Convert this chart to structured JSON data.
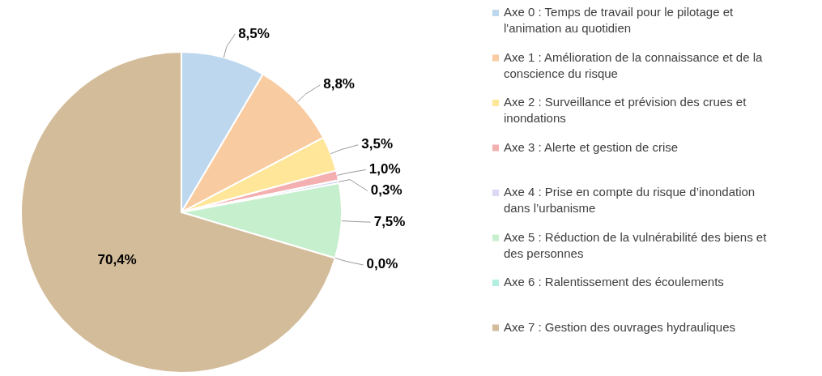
{
  "chart_data": {
    "type": "pie",
    "categories": [
      "Axe 0 : Temps de travail pour le pilotage et l'animation au quotidien",
      "Axe 1 : Amélioration de la connaissance et de la conscience du risque",
      "Axe 2 : Surveillance et prévision des crues et inondations",
      "Axe 3 : Alerte et gestion de crise",
      "Axe 4 : Prise en compte du risque d’inondation dans l’urbanisme",
      "Axe 5 : Réduction de la vulnérabilité des biens et des personnes",
      "Axe 6 : Ralentissement des écoulements",
      "Axe 7 : Gestion des ouvrages hydrauliques"
    ],
    "values": [
      8.5,
      8.8,
      3.5,
      1.0,
      0.3,
      7.5,
      0.0,
      70.4
    ],
    "colors": [
      "#bdd7ee",
      "#f8cba0",
      "#ffe699",
      "#f4b0b0",
      "#d9d9f3",
      "#c6efce",
      "#b3f0e0",
      "#d3bc9a"
    ],
    "value_labels": [
      "8,5%",
      "8,8%",
      "3,5%",
      "1,0%",
      "0,3%",
      "7,5%",
      "0,0%",
      "70,4%"
    ],
    "data_labels": true,
    "legend": "right"
  }
}
